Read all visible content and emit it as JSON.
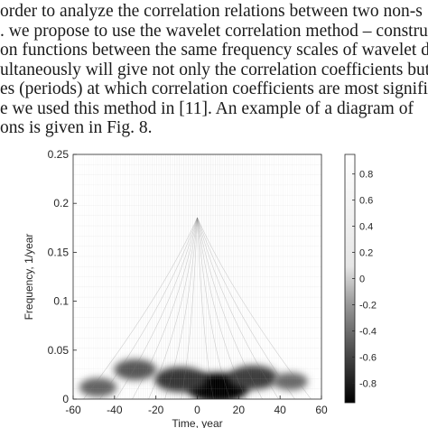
{
  "paragraph": {
    "lines": [
      "order to analyze the correlation relations between two non-s",
      ". we propose to use the wavelet correlation method – constructio",
      "on functions between the same frequency scales of wavelet decom",
      "ultaneously will give not only the correlation coefficients but",
      "es (periods) at which correlation coefficients are most significan",
      "e we used this method in [11]. An example of a diagram of",
      "ons is given in Fig. 8."
    ]
  },
  "chart_data": {
    "type": "heatmap",
    "xlabel": "Time, year",
    "ylabel": "Frequency, 1/year",
    "xlim": [
      -60,
      60
    ],
    "ylim": [
      0,
      0.25
    ],
    "xticks": [
      "-60",
      "-40",
      "-20",
      "0",
      "20",
      "40",
      "60"
    ],
    "yticks": [
      "0",
      "0.05",
      "0.1",
      "0.15",
      "0.2",
      "0.25"
    ],
    "colorbar": {
      "range": [
        -0.95,
        0.95
      ],
      "ticks": [
        "0.8",
        "0.6",
        "0.4",
        "0.2",
        "0",
        "-0.2",
        "-0.4",
        "-0.6",
        "-0.8"
      ],
      "colormap": "gray",
      "low_color": "#000000",
      "high_color": "#ffffff"
    },
    "features": [
      {
        "x": 10,
        "y": 0.012,
        "value": -0.95
      },
      {
        "x": -8,
        "y": 0.02,
        "value": -0.75
      },
      {
        "x": 27,
        "y": 0.022,
        "value": -0.7
      },
      {
        "x": -30,
        "y": 0.03,
        "value": -0.55
      },
      {
        "x": -48,
        "y": 0.012,
        "value": -0.45
      },
      {
        "x": 45,
        "y": 0.018,
        "value": -0.4
      }
    ]
  }
}
